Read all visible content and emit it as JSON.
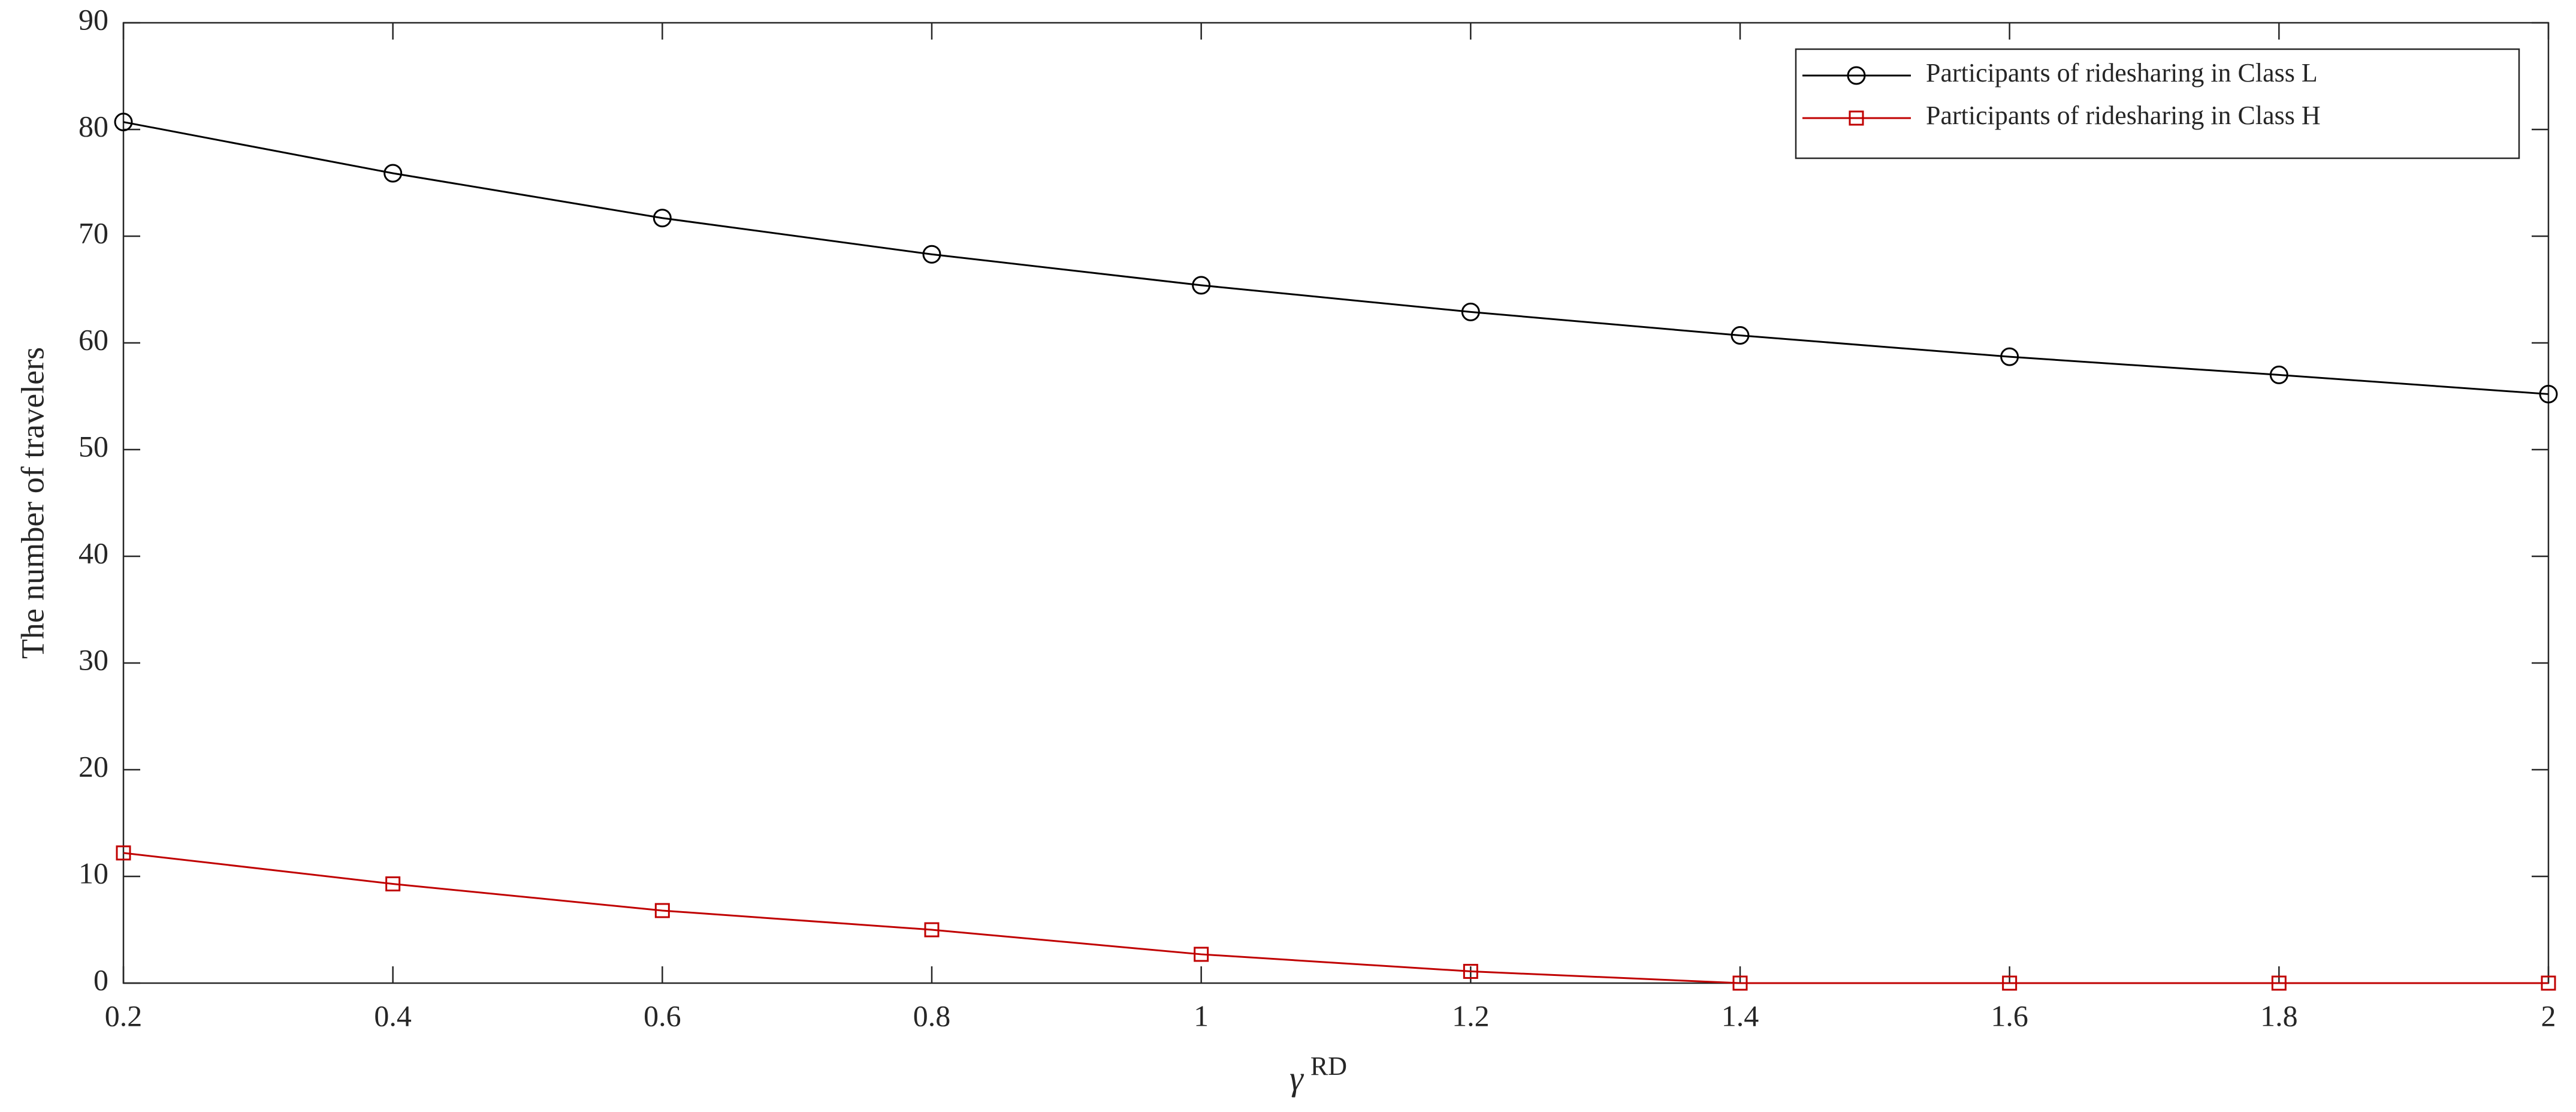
{
  "chart_data": {
    "type": "line",
    "xlabel": {
      "base": "γ",
      "sup": "RD"
    },
    "ylabel": "The number of travelers",
    "x": [
      0.2,
      0.4,
      0.6,
      0.8,
      1,
      1.2,
      1.4,
      1.6,
      1.8,
      2
    ],
    "series": [
      {
        "name": "Participants of ridesharing in Class L",
        "color": "#000000",
        "marker": "circle",
        "values": [
          80.7,
          75.9,
          71.7,
          68.3,
          65.4,
          62.9,
          60.7,
          58.7,
          57.0,
          55.2
        ]
      },
      {
        "name": "Participants of ridesharing in Class H",
        "color": "#c00000",
        "marker": "square",
        "values": [
          12.2,
          9.3,
          6.8,
          5.0,
          2.7,
          1.1,
          0,
          0,
          0,
          0
        ]
      }
    ],
    "xlim": [
      0.2,
      2
    ],
    "xticks": [
      0.2,
      0.4,
      0.6,
      0.8,
      1,
      1.2,
      1.4,
      1.6,
      1.8,
      2
    ],
    "ylim": [
      0,
      90
    ],
    "yticks": [
      0,
      10,
      20,
      30,
      40,
      50,
      60,
      70,
      80,
      90
    ],
    "legend": "top-right"
  }
}
